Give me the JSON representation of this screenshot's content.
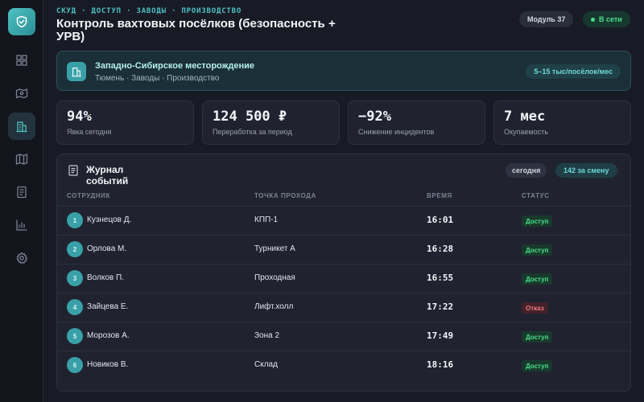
{
  "header": {
    "breadcrumbs": "СКУД · ДОСТУП · ЗАВОДЫ · ПРОИЗВОДСТВО",
    "title": "Контроль вахтовых посёлков (безопасность + УРВ)",
    "module_label": "Модуль 37",
    "status_label": "В сети"
  },
  "sidebar": {
    "items": [
      {
        "icon": "dashboard-icon"
      },
      {
        "icon": "map-pin-icon"
      },
      {
        "icon": "building-icon",
        "active": true
      },
      {
        "icon": "map-icon"
      },
      {
        "icon": "document-icon"
      },
      {
        "icon": "bar-chart-icon"
      },
      {
        "icon": "gear-icon"
      }
    ]
  },
  "site": {
    "name": "Западно-Сибирское месторождение",
    "subtitle": "Тюмень · Заводы · Производство",
    "badge": "5–15 тыс/посёлок/мес"
  },
  "kpis": [
    {
      "value": "94%",
      "label": "Явка сегодня"
    },
    {
      "value": "124 500 ₽",
      "label": "Переработка за период"
    },
    {
      "value": "−92%",
      "label": "Снижение инцидентов"
    },
    {
      "value": "7 мес",
      "label": "Окупаемость"
    }
  ],
  "log": {
    "title": "Журнал событий",
    "filter_label": "сегодня",
    "count_label": "142 за смену",
    "columns": {
      "employee": "СОТРУДНИК",
      "point": "ТОЧКА ПРОХОДА",
      "time": "ВРЕМЯ",
      "status": "СТАТУС"
    },
    "rows": [
      {
        "n": "1",
        "name": "Кузнецов Д.",
        "point": "КПП-1",
        "time": "16:01",
        "status": "Доступ",
        "ok": true
      },
      {
        "n": "2",
        "name": "Орлова М.",
        "point": "Турникет А",
        "time": "16:28",
        "status": "Доступ",
        "ok": true
      },
      {
        "n": "3",
        "name": "Волков П.",
        "point": "Проходная",
        "time": "16:55",
        "status": "Доступ",
        "ok": true
      },
      {
        "n": "4",
        "name": "Зайцева Е.",
        "point": "Лифт.холл",
        "time": "17:22",
        "status": "Отказ",
        "ok": false
      },
      {
        "n": "5",
        "name": "Морозов А.",
        "point": "Зона 2",
        "time": "17:49",
        "status": "Доступ",
        "ok": true
      },
      {
        "n": "6",
        "name": "Новиков В.",
        "point": "Склад",
        "time": "18:16",
        "status": "Доступ",
        "ok": true
      }
    ]
  },
  "colors": {
    "accent": "#4fc2c2",
    "ok": "#4ede8a",
    "deny": "#f07a82"
  }
}
